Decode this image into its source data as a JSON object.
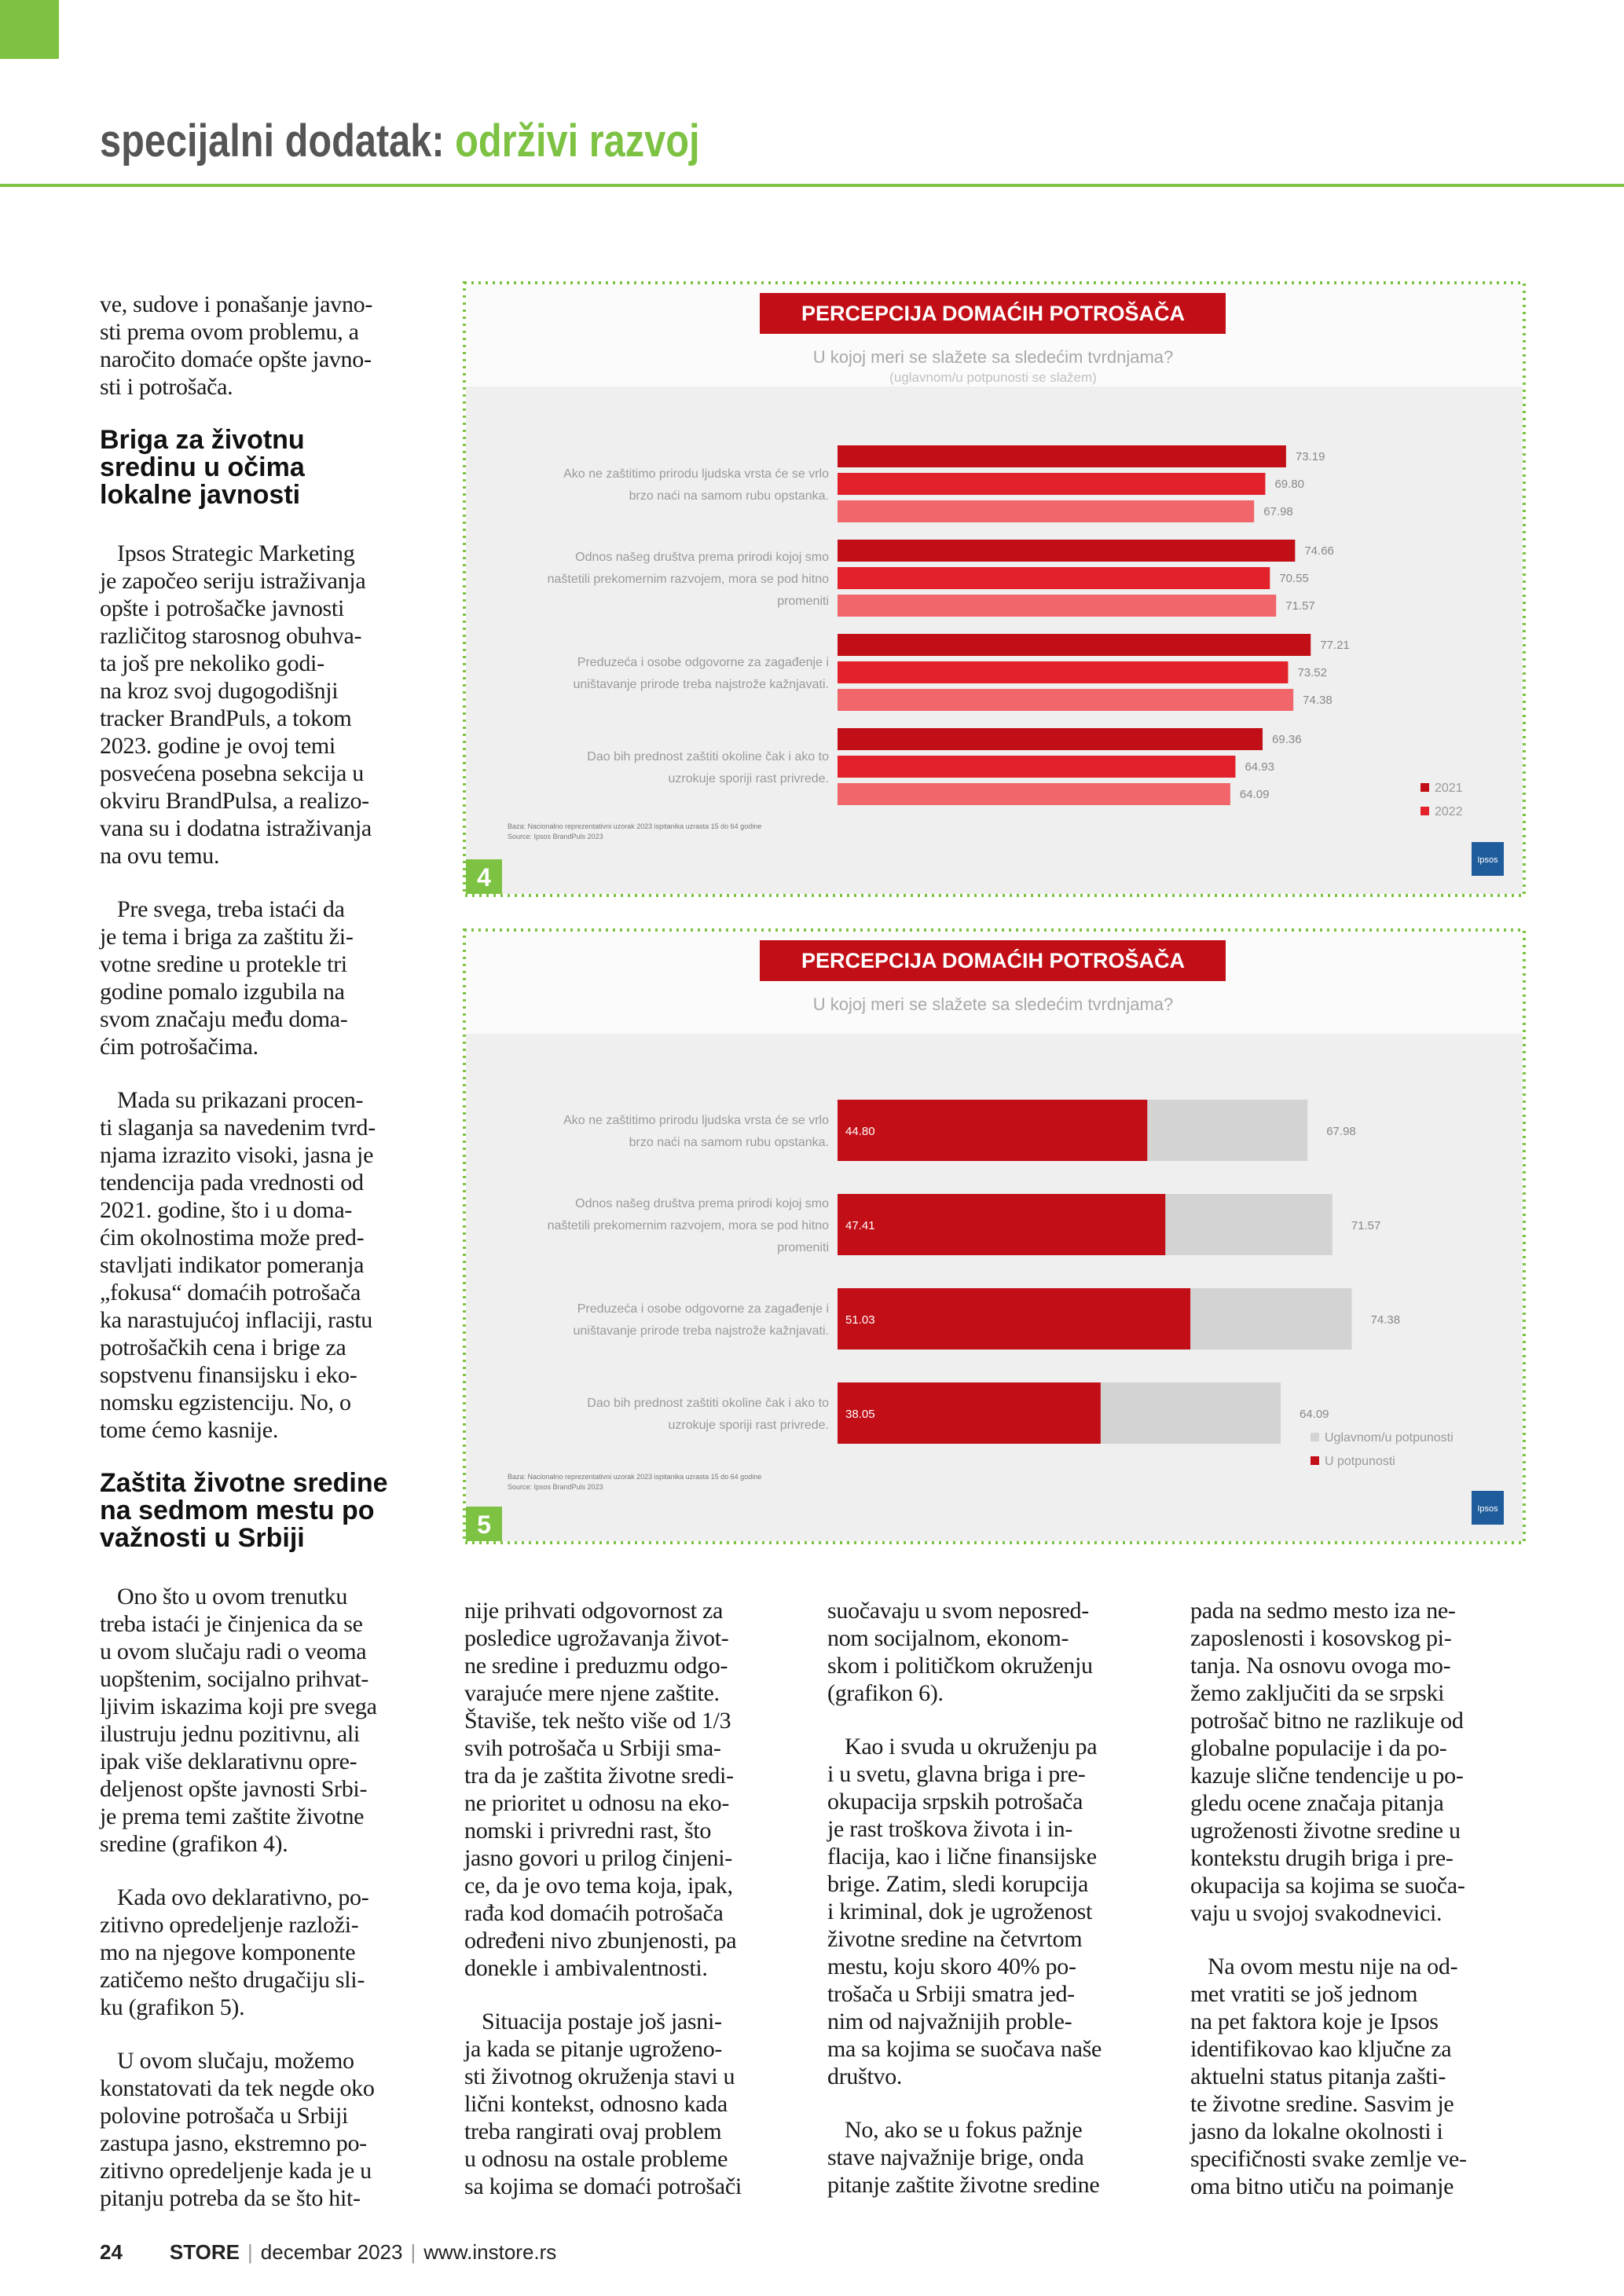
{
  "header": {
    "title_prefix": "specijalni dodatak:",
    "title_topic": "održivi razvoj"
  },
  "columns": [
    [
      {
        "paragraph": [
          "ve, sudove i ponašanje javno-",
          "sti prema ovom problemu, a",
          "naročito domaće opšte javno-",
          "sti i potrošača."
        ]
      },
      {
        "heading": [
          "Briga za životnu",
          "sredinu u očima",
          "lokalne javnosti"
        ]
      },
      {
        "paragraph": [
          "Ipsos Strategic Marketing",
          "je započeo seriju istraživanja",
          "opšte i potrošačke javnosti",
          "različitog starosnog obuhva-",
          "ta još pre nekoliko godi-",
          "na kroz svoj dugogodišnji",
          "tracker BrandPuls, a tokom",
          "2023. godine je ovoj temi",
          "posvećena posebna sekcija u",
          "okviru BrandPulsa, a realizo-",
          "vana su i dodatna istraživanja",
          "na ovu temu."
        ]
      },
      {
        "paragraph": [
          "Pre svega, treba istaći da",
          "je tema i briga za zaštitu ži-",
          "votne sredine u protekle tri",
          "godine pomalo izgubila na",
          "svom značaju među doma-",
          "ćim potrošačima."
        ]
      },
      {
        "paragraph": [
          "Mada su prikazani procen-",
          "ti slaganja sa navedenim tvrd-",
          "njama izrazito visoki, jasna je",
          "tendencija pada vrednosti od",
          "2021. godine, što i u doma-",
          "ćim okolnostima može pred-",
          "stavljati indikator pomeranja",
          "„fokusa“ domaćih potrošača",
          "ka narastujućoj inflaciji, rastu",
          "potrošačkih cena i brige za",
          "sopstvenu finansijsku i eko-",
          "nomsku egzistenciju. No, o",
          "tome ćemo kasnije."
        ]
      },
      {
        "heading": [
          "Zaštita životne sredine",
          "na sedmom mestu po",
          "važnosti u Srbiji"
        ]
      },
      {
        "paragraph": [
          "Ono što u ovom trenutku",
          "treba istaći je činjenica da se",
          "u ovom slučaju radi o veoma",
          "uopštenim, socijalno prihvat-",
          "ljivim iskazima koji pre svega",
          "ilustruju jednu pozitivnu, ali",
          "ipak više deklarativnu opre-",
          "deljenost opšte javnosti Srbi-",
          "je prema temi zaštite životne",
          "sredine (grafikon 4)."
        ]
      },
      {
        "paragraph": [
          "Kada ovo deklarativno, po-",
          "zitivno opredeljenje razloži-",
          "mo na njegove komponente",
          "zatičemo nešto drugačiju sli-",
          "ku (grafikon 5)."
        ]
      },
      {
        "paragraph": [
          "U ovom slučaju, možemo",
          "konstatovati da tek negde oko",
          "polovine potrošača u Srbiji",
          "zastupa jasno, ekstremno po-",
          "zitivno opredeljenje kada je u",
          "pitanju potreba da se što hit-"
        ]
      }
    ],
    [
      {
        "paragraph": [
          "nije prihvati odgovornost za",
          "posledice ugrožavanja život-",
          "ne sredine i preduzmu odgo-",
          "varajuće mere njene zaštite.",
          "Štaviše, tek nešto više od 1/3",
          "svih potrošača u Srbiji sma-",
          "tra da je zaštita životne sredi-",
          "ne prioritet u odnosu na eko-",
          "nomski i privredni rast, što",
          "jasno govori u prilog činjeni-",
          "ce, da je ovo tema koja, ipak,",
          "rađa kod domaćih potrošača",
          "određeni nivo zbunjenosti, pa",
          "donekle i ambivalentnosti."
        ]
      },
      {
        "paragraph": [
          "Situacija postaje još jasni-",
          "ja kada se pitanje ugroženo-",
          "sti životnog okruženja stavi u",
          "lični kontekst, odnosno kada",
          "treba rangirati ovaj problem",
          "u odnosu na ostale probleme",
          "sa kojima se domaći potrošači"
        ]
      }
    ],
    [
      {
        "paragraph": [
          "suočavaju u svom neposred-",
          "nom socijalnom, ekonom-",
          "skom i političkom okruženju",
          "(grafikon 6)."
        ]
      },
      {
        "paragraph": [
          "Kao i svuda u okruženju pa",
          "i u svetu, glavna briga i pre-",
          "okupacija srpskih potrošača",
          "je rast troškova života i in-",
          "flacija, kao i lične finansijske",
          "brige. Zatim, sledi korupcija",
          "i kriminal, dok je ugroženost",
          "životne sredine na četvrtom",
          "mestu, koju skoro 40% po-",
          "trošača u Srbiji smatra jed-",
          "nim od najvažnijih proble-",
          "ma sa kojima se suočava naše",
          "društvo."
        ]
      },
      {
        "paragraph": [
          "No, ako se u fokus pažnje",
          "stave najvažnije brige, onda",
          "pitanje zaštite životne sredine"
        ]
      }
    ],
    [
      {
        "paragraph": [
          "pada na sedmo mesto iza ne-",
          "zaposlenosti i kosovskog pi-",
          "tanja. Na osnovu ovoga mo-",
          "žemo zaključiti da se srpski",
          "potrošač bitno ne razlikuje od",
          "globalne populacije i da po-",
          "kazuje slične tendencije u po-",
          "gledu ocene značaja pitanja",
          "ugroženosti životne sredine u",
          "kontekstu drugih briga i pre-",
          "okupacija sa kojima se suoča-",
          "vaju u svojoj svakodnevici."
        ]
      },
      {
        "paragraph": [
          "Na ovom mestu nije na od-",
          "met vratiti se još jednom",
          "na pet faktora koje je Ipsos",
          "identifikovao kao ključne za",
          "aktuelni status pitanja zašti-",
          "te životne sredine. Sasvim je",
          "jasno da lokalne okolnosti i",
          "specifičnosti svake zemlje ve-",
          "oma bitno utiču na poimanje"
        ]
      }
    ]
  ],
  "chart_data": [
    {
      "type": "bar",
      "orientation": "horizontal",
      "barmode": "group",
      "figure_number": "4",
      "title": "PERCEPCIJA DOMAĆIH POTROŠAČA",
      "subtitle": "U kojoj meri se slažete sa sledećim tvrdnjama?",
      "subsubtitle": "(uglavnom/u potpunosti se slažem)",
      "categories": [
        [
          "Ako ne zaštitimo prirodu ljudska vrsta će se vrlo",
          "brzo naći na samom rubu opstanka."
        ],
        [
          "Odnos našeg društva prema prirodi kojoj smo",
          "naštetili prekomernim razvojem, mora se pod hitno",
          "promeniti"
        ],
        [
          "Preduzeća i osobe odgovorne za zagađenje i",
          "uništavanje prirode treba najstrože kažnjavati."
        ],
        [
          "Dao bih prednost zaštiti okoline čak i ako to",
          "uzrokuje sporiji rast privrede."
        ]
      ],
      "series": [
        {
          "name": "2021",
          "color": "#c20e16",
          "values": [
            73.19,
            74.66,
            77.21,
            69.36
          ],
          "value_labels": [
            "73.19",
            "74.66",
            "77.21",
            "69.36"
          ]
        },
        {
          "name": "2022",
          "color": "#e3212a",
          "values": [
            69.8,
            70.55,
            73.52,
            64.93
          ],
          "value_labels": [
            "69.80",
            "70.55",
            "73.52",
            "64.93"
          ]
        },
        {
          "color": "#f0666b",
          "values": [
            67.98,
            71.57,
            74.38,
            64.09
          ],
          "value_labels": [
            "67.98",
            "71.57",
            "74.38",
            "64.09"
          ]
        }
      ],
      "legend": "bottom-right",
      "notes": [
        "Baza: Nacionalno reprezentativni uzorak 2023 ispitanika uzrasta 15 do 64 godine",
        "Source: Ipsos BrandPuls 2023"
      ],
      "logo": "Ipsos"
    },
    {
      "type": "bar",
      "orientation": "horizontal",
      "barmode": "overlay",
      "figure_number": "5",
      "title": "PERCEPCIJA DOMAĆIH POTROŠAČA",
      "subtitle": "U kojoj meri se slažete sa sledećim tvrdnjama?",
      "categories": [
        [
          "Ako ne zaštitimo prirodu ljudska vrsta će se vrlo",
          "brzo naći na samom rubu opstanka."
        ],
        [
          "Odnos našeg društva prema prirodi kojoj smo",
          "naštetili prekomernim razvojem, mora se pod hitno",
          "promeniti"
        ],
        [
          "Preduzeća i osobe odgovorne za zagađenje i",
          "uništavanje prirode treba najstrože kažnjavati."
        ],
        [
          "Dao bih prednost zaštiti okoline čak i ako to",
          "uzrokuje sporiji rast privrede."
        ]
      ],
      "series": [
        {
          "name": "Uglavnom/u potpunosti",
          "color": "#d3d3d3",
          "values": [
            67.98,
            71.57,
            74.38,
            64.09
          ],
          "value_labels": [
            "67.98",
            "71.57",
            "74.38",
            "64.09"
          ]
        },
        {
          "name": "U potpunosti",
          "color": "#c20e16",
          "values": [
            44.8,
            47.41,
            51.03,
            38.05
          ],
          "value_labels": [
            "44.80",
            "47.41",
            "51.03",
            "38.05"
          ]
        }
      ],
      "legend": "bottom-right",
      "notes": [
        "Baza: Nacionalno reprezentativni uzorak 2023 ispitanika uzrasta 15 do 64 godine",
        "Source: Ipsos BrandPuls 2023"
      ],
      "logo": "Ipsos"
    }
  ],
  "footer": {
    "page_number": "24",
    "brand": "STORE",
    "issue": "decembar 2023",
    "website": "www.instore.rs"
  }
}
